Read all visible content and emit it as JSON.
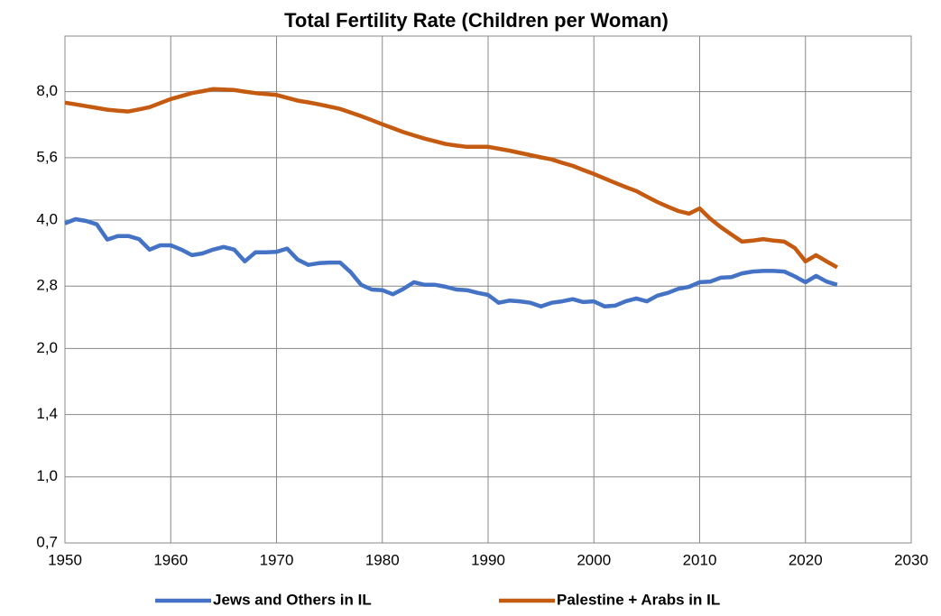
{
  "chart_data": {
    "type": "line",
    "title": "Total Fertility Rate (Children per Woman)",
    "x": [
      1950,
      1951,
      1952,
      1953,
      1954,
      1955,
      1956,
      1957,
      1958,
      1959,
      1960,
      1961,
      1962,
      1963,
      1964,
      1965,
      1966,
      1967,
      1968,
      1969,
      1970,
      1971,
      1972,
      1973,
      1974,
      1975,
      1976,
      1977,
      1978,
      1979,
      1980,
      1981,
      1982,
      1983,
      1984,
      1985,
      1986,
      1987,
      1988,
      1989,
      1990,
      1991,
      1992,
      1993,
      1994,
      1995,
      1996,
      1997,
      1998,
      1999,
      2000,
      2001,
      2002,
      2003,
      2004,
      2005,
      2006,
      2007,
      2008,
      2009,
      2010,
      2011,
      2012,
      2013,
      2014,
      2015,
      2016,
      2017,
      2018,
      2019,
      2020,
      2021,
      2022,
      2023
    ],
    "series": [
      {
        "name": "Jews and Others in IL",
        "color": "#4472c4",
        "values": [
          3.93,
          4.02,
          3.98,
          3.91,
          3.6,
          3.67,
          3.67,
          3.61,
          3.41,
          3.49,
          3.49,
          3.41,
          3.31,
          3.34,
          3.41,
          3.46,
          3.41,
          3.2,
          3.36,
          3.36,
          3.37,
          3.43,
          3.23,
          3.14,
          3.17,
          3.18,
          3.18,
          3.02,
          2.82,
          2.75,
          2.74,
          2.68,
          2.76,
          2.86,
          2.82,
          2.82,
          2.79,
          2.75,
          2.74,
          2.7,
          2.67,
          2.56,
          2.59,
          2.58,
          2.56,
          2.51,
          2.56,
          2.58,
          2.61,
          2.57,
          2.58,
          2.51,
          2.52,
          2.58,
          2.62,
          2.58,
          2.66,
          2.7,
          2.76,
          2.79,
          2.86,
          2.87,
          2.93,
          2.94,
          3.0,
          3.03,
          3.04,
          3.04,
          3.03,
          2.95,
          2.86,
          2.96,
          2.87,
          2.82
        ]
      },
      {
        "name": "Palestine + Arabs in IL",
        "color": "#c55a11",
        "values": [
          7.54,
          7.47,
          7.4,
          7.33,
          7.26,
          7.22,
          7.19,
          7.27,
          7.36,
          7.52,
          7.69,
          7.81,
          7.94,
          8.02,
          8.11,
          8.09,
          8.07,
          8.0,
          7.94,
          7.9,
          7.86,
          7.74,
          7.62,
          7.55,
          7.47,
          7.38,
          7.29,
          7.15,
          7.01,
          6.86,
          6.71,
          6.57,
          6.43,
          6.32,
          6.21,
          6.12,
          6.03,
          5.98,
          5.94,
          5.94,
          5.94,
          5.88,
          5.82,
          5.75,
          5.68,
          5.61,
          5.55,
          5.45,
          5.36,
          5.24,
          5.13,
          5.01,
          4.89,
          4.78,
          4.68,
          4.54,
          4.41,
          4.3,
          4.2,
          4.14,
          4.26,
          4.03,
          3.85,
          3.7,
          3.56,
          3.58,
          3.61,
          3.58,
          3.56,
          3.44,
          3.2,
          3.31,
          3.2,
          3.1
        ]
      }
    ],
    "xlim": [
      1950,
      2030
    ],
    "xticks": [
      1950,
      1960,
      1970,
      1980,
      1990,
      2000,
      2010,
      2020,
      2030
    ],
    "ylim": [
      0.7,
      10.8
    ],
    "ylog": true,
    "yticks": [
      {
        "value": 0.7,
        "label": "0,7"
      },
      {
        "value": 1.0,
        "label": "1,0"
      },
      {
        "value": 1.4,
        "label": "1,4"
      },
      {
        "value": 2.0,
        "label": "2,0"
      },
      {
        "value": 2.8,
        "label": "2,8"
      },
      {
        "value": 4.0,
        "label": "4,0"
      },
      {
        "value": 5.6,
        "label": "5,6"
      },
      {
        "value": 8.0,
        "label": "8,0"
      }
    ],
    "grid": true,
    "legend": "bottom"
  }
}
